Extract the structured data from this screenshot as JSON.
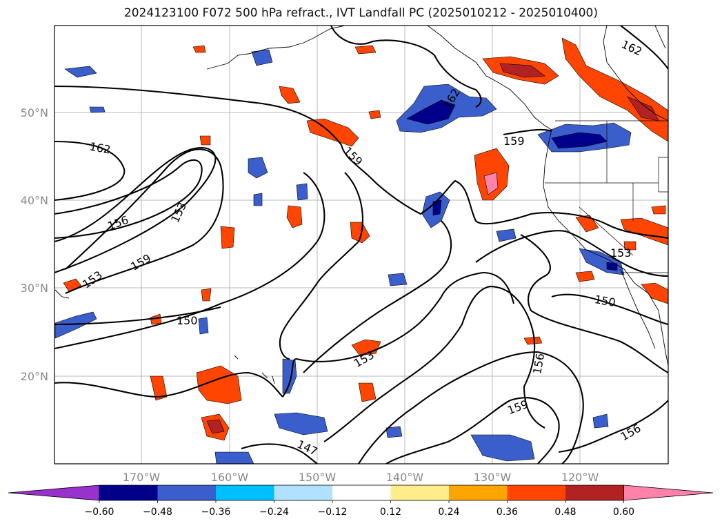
{
  "title": "2024123100 F072 500 hPa refract., IVT Landfall PC (2025010212 - 2025010400)",
  "map": {
    "lon_ticks": [
      "170°W",
      "160°W",
      "150°W",
      "140°W",
      "130°W",
      "120°W"
    ],
    "lat_ticks": [
      "50°N",
      "40°N",
      "30°N",
      "20°N"
    ],
    "contour_labels": [
      "162",
      "162",
      "162",
      "159",
      "159",
      "159",
      "159",
      "156",
      "156",
      "156",
      "153",
      "153",
      "153",
      "153",
      "150",
      "150",
      "147"
    ]
  },
  "colorbar": {
    "colors": [
      "#9932CC",
      "#00008B",
      "#3A5FCD",
      "#00BFFF",
      "#B0E2FF",
      "#FFFFFF",
      "#FFEC8B",
      "#FFA500",
      "#FF4500",
      "#B22222",
      "#FF82AB"
    ],
    "tick_labels": [
      "−0.60",
      "−0.48",
      "−0.36",
      "−0.24",
      "−0.12",
      "0.12",
      "0.24",
      "0.36",
      "0.48",
      "0.60"
    ]
  }
}
